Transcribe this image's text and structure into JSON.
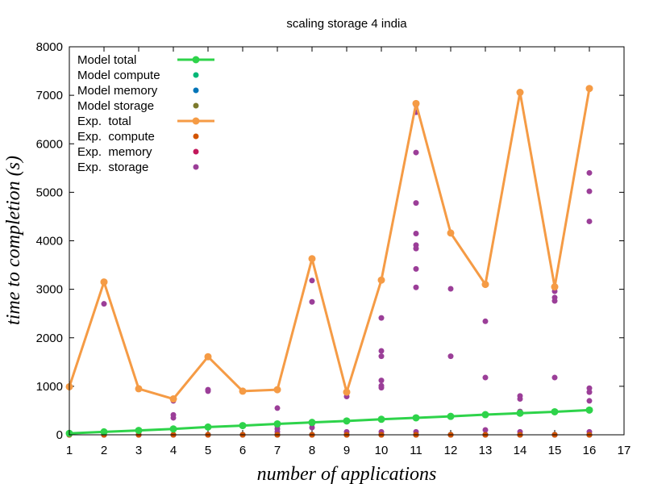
{
  "chart_data": {
    "type": "line",
    "title": "scaling storage 4 india",
    "xlabel": "number of applications",
    "ylabel": "time to completion (s)",
    "xlim": [
      1,
      17
    ],
    "ylim": [
      0,
      8000
    ],
    "xticks": [
      1,
      2,
      3,
      4,
      5,
      6,
      7,
      8,
      9,
      10,
      11,
      12,
      13,
      14,
      15,
      16,
      17
    ],
    "yticks": [
      0,
      1000,
      2000,
      3000,
      4000,
      5000,
      6000,
      7000,
      8000
    ],
    "grid": false,
    "legend_position": "top-left",
    "series": [
      {
        "name": "Model total",
        "kind": "line",
        "color": "#2ed34a",
        "x": [
          1,
          2,
          3,
          4,
          5,
          6,
          7,
          8,
          9,
          10,
          11,
          12,
          13,
          14,
          15,
          16
        ],
        "y": [
          30,
          60,
          90,
          120,
          160,
          190,
          225,
          255,
          285,
          320,
          350,
          380,
          415,
          445,
          475,
          510
        ]
      },
      {
        "name": "Model compute",
        "kind": "points",
        "color": "#00b777",
        "x": [
          1,
          2,
          3,
          4,
          5,
          6,
          7,
          8,
          9,
          10,
          11,
          12,
          13,
          14,
          15,
          16
        ],
        "y": [
          0,
          0,
          0,
          0,
          0,
          0,
          0,
          0,
          0,
          0,
          0,
          0,
          0,
          0,
          0,
          0
        ]
      },
      {
        "name": "Model memory",
        "kind": "points",
        "color": "#0075b8",
        "x": [
          1,
          2,
          3,
          4,
          5,
          6,
          7,
          8,
          9,
          10,
          11,
          12,
          13,
          14,
          15,
          16
        ],
        "y": [
          0,
          0,
          0,
          0,
          0,
          0,
          0,
          0,
          0,
          0,
          0,
          0,
          0,
          0,
          0,
          0
        ]
      },
      {
        "name": "Model storage",
        "kind": "points",
        "color": "#7c7a2c",
        "x": [
          1,
          2,
          3,
          4,
          5,
          6,
          7,
          8,
          9,
          10,
          11,
          12,
          13,
          14,
          15,
          16
        ],
        "y": [
          30,
          60,
          90,
          120,
          160,
          190,
          225,
          255,
          285,
          320,
          350,
          380,
          415,
          445,
          475,
          510
        ]
      },
      {
        "name": "Exp.  total",
        "kind": "line",
        "color": "#f59b45",
        "x": [
          1,
          2,
          3,
          4,
          5,
          6,
          7,
          8,
          9,
          10,
          11,
          12,
          13,
          14,
          15,
          16
        ],
        "y": [
          990,
          3150,
          950,
          740,
          1610,
          900,
          930,
          3630,
          880,
          3190,
          6830,
          4160,
          3100,
          7060,
          3050,
          7140
        ]
      },
      {
        "name": "Exp.  compute",
        "kind": "points",
        "color": "#d35400",
        "x": [
          1,
          2,
          3,
          4,
          5,
          6,
          7,
          8,
          9,
          10,
          11,
          12,
          13,
          14,
          15,
          16
        ],
        "y": [
          0,
          0,
          0,
          0,
          0,
          0,
          0,
          0,
          0,
          0,
          0,
          0,
          0,
          0,
          0,
          0
        ]
      },
      {
        "name": "Exp.  memory",
        "kind": "points",
        "color": "#c2185b",
        "x": [
          1,
          2,
          3,
          4,
          5,
          6,
          7,
          8,
          9,
          10,
          11,
          12,
          13,
          14,
          15,
          16
        ],
        "y": [
          0,
          0,
          0,
          0,
          0,
          0,
          0,
          0,
          0,
          0,
          0,
          0,
          0,
          0,
          0,
          0
        ]
      },
      {
        "name": "Exp.  storage",
        "kind": "points",
        "color": "#9b3e98",
        "x": [
          1,
          2,
          2,
          3,
          4,
          4,
          4,
          4,
          5,
          5,
          6,
          7,
          7,
          7,
          7,
          8,
          8,
          8,
          8,
          9,
          9,
          9,
          10,
          10,
          10,
          10,
          10,
          10,
          10,
          10,
          11,
          11,
          11,
          11,
          11,
          11,
          11,
          11,
          11,
          11,
          12,
          12,
          12,
          13,
          13,
          13,
          13,
          14,
          14,
          14,
          14,
          14,
          15,
          15,
          15,
          15,
          15,
          16,
          16,
          16,
          16,
          16,
          16,
          16,
          16
        ],
        "y": [
          990,
          3130,
          2700,
          950,
          750,
          700,
          410,
          350,
          930,
          900,
          900,
          550,
          180,
          120,
          60,
          3180,
          2740,
          220,
          150,
          880,
          790,
          60,
          3180,
          2410,
          1730,
          1620,
          1120,
          1010,
          970,
          60,
          6800,
          6650,
          5820,
          4780,
          4150,
          3910,
          3840,
          3420,
          3040,
          60,
          4170,
          3010,
          1620,
          3090,
          2340,
          1180,
          100,
          7050,
          800,
          740,
          480,
          60,
          3030,
          2960,
          2830,
          2760,
          1180,
          7130,
          5400,
          5020,
          4400,
          960,
          880,
          700,
          60
        ]
      }
    ]
  }
}
